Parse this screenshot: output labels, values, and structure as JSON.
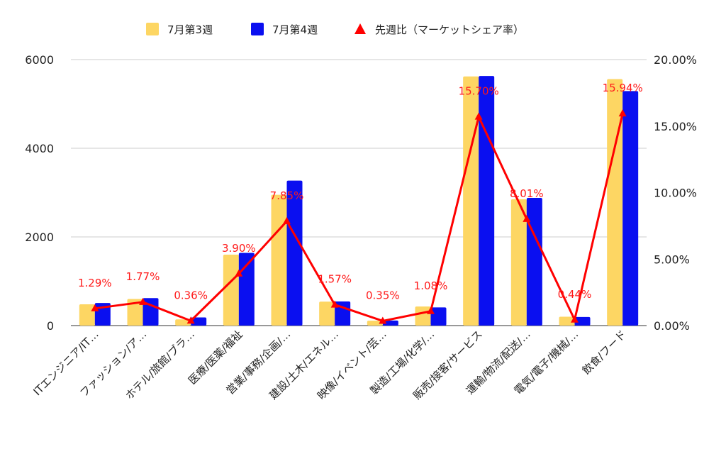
{
  "chart_data": {
    "type": "bar",
    "categories": [
      "ITエンジニア/IT…",
      "ファッション/ア…",
      "ホテル/旅館/ブラ…",
      "医療/医薬/福祉",
      "営業/事務/企画/…",
      "建設/土木/エネル…",
      "映像/イベント/芸…",
      "製造/工場/化学/…",
      "販売/接客/サービス",
      "運輸/物流/配送/…",
      "電気/電子/機械/…",
      "飲食/フード"
    ],
    "series": [
      {
        "name": "7月第3週",
        "color": "#fdd663",
        "values": [
          480,
          600,
          140,
          1600,
          2950,
          540,
          110,
          430,
          5620,
          2850,
          200,
          5560
        ]
      },
      {
        "name": "7月第4週",
        "color": "#0a0ff0",
        "values": [
          510,
          620,
          185,
          1640,
          3270,
          545,
          115,
          410,
          5630,
          2880,
          195,
          5290
        ]
      }
    ],
    "line_series": {
      "name": "先週比（マーケットシェア率）",
      "color": "#ff0000",
      "values": [
        1.29,
        1.77,
        0.36,
        3.9,
        7.85,
        1.57,
        0.35,
        1.08,
        15.7,
        8.01,
        0.44,
        15.94
      ],
      "labels": [
        "1.29%",
        "1.77%",
        "0.36%",
        "3.90%",
        "7.85%",
        "1.57%",
        "0.35%",
        "1.08%",
        "15.70%",
        "8.01%",
        "0.44%",
        "15.94%"
      ]
    },
    "ylim": [
      0,
      6000
    ],
    "y_ticks": [
      0,
      2000,
      4000,
      6000
    ],
    "y2lim": [
      0,
      20
    ],
    "y2_ticks": [
      "0.00%",
      "5.00%",
      "10.00%",
      "15.00%",
      "20.00%"
    ],
    "grid": true,
    "legend": "top",
    "title": "",
    "xlabel": "",
    "ylabel": ""
  }
}
